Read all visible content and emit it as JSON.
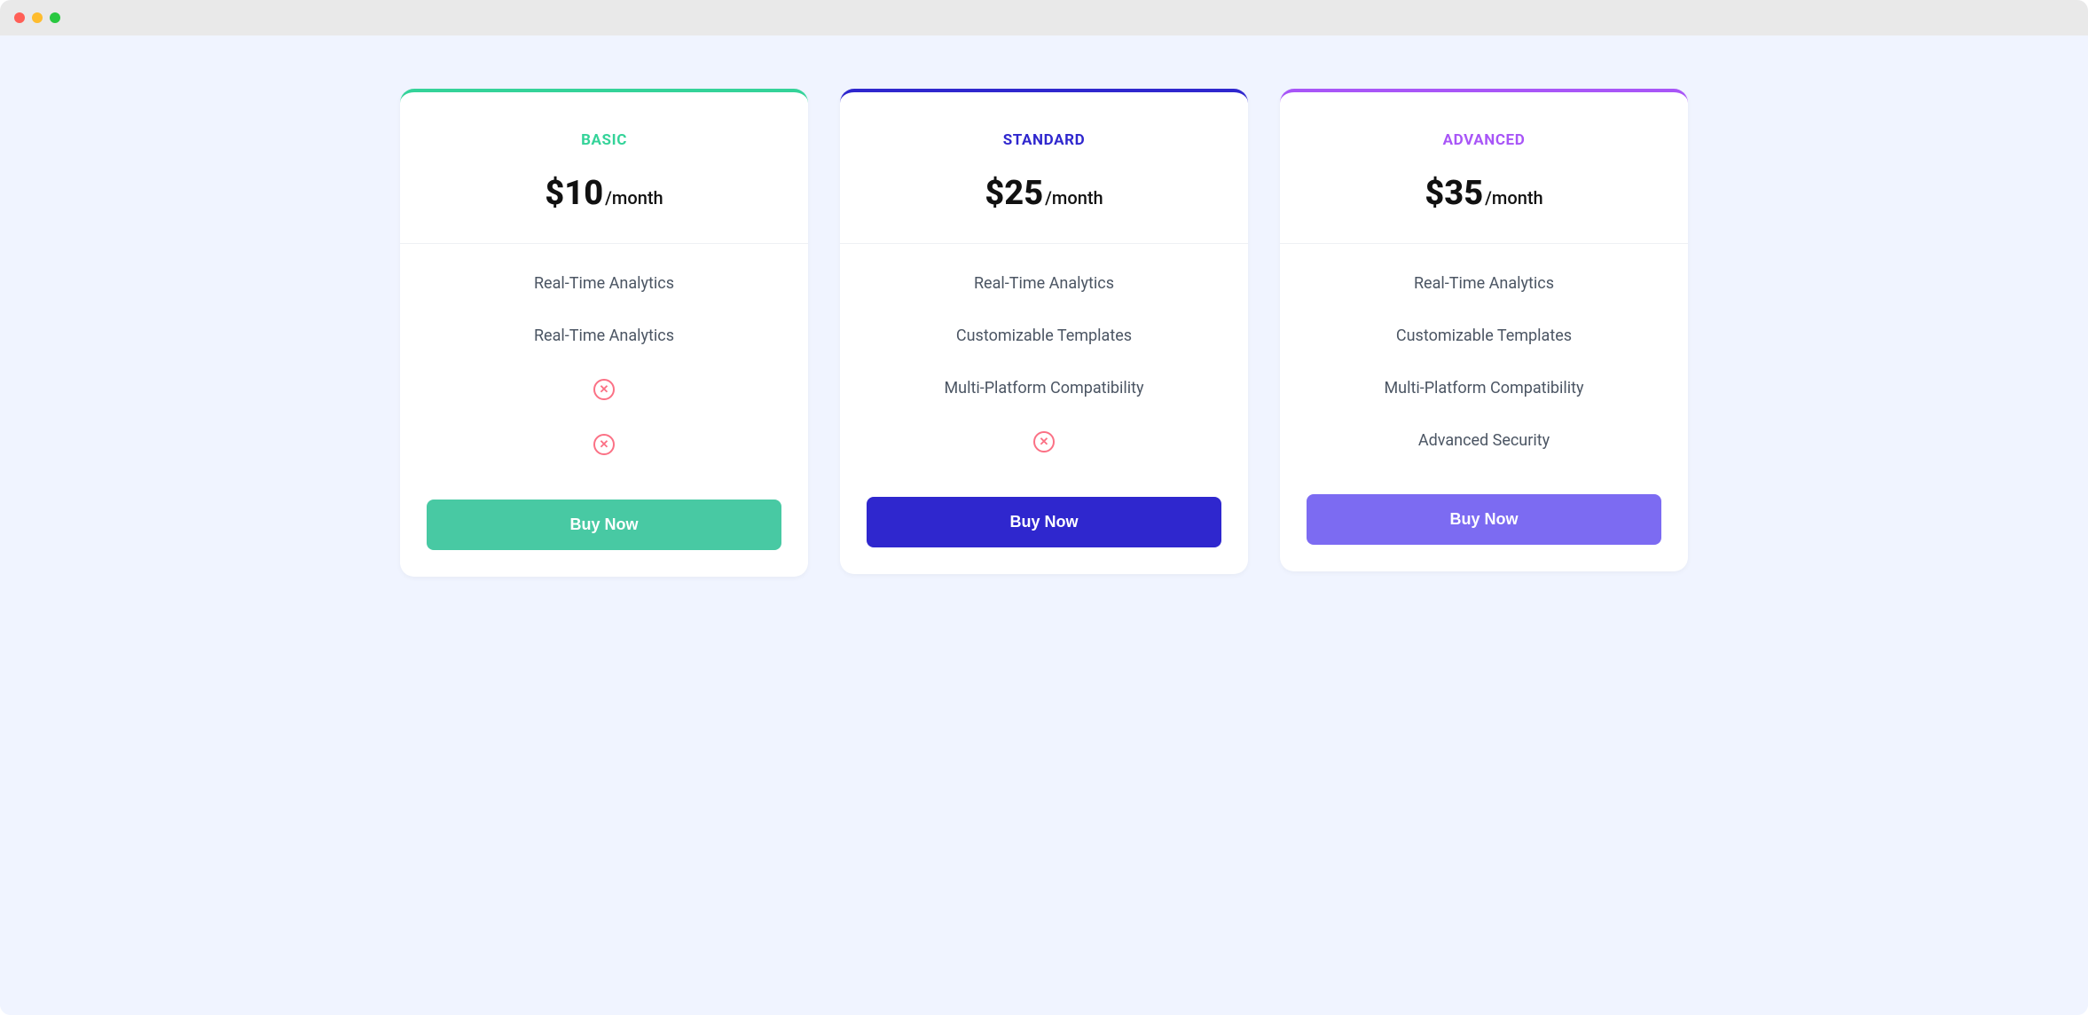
{
  "window": {
    "titlebar": {
      "background": "#e9e9e9",
      "dots": [
        "#ff5f57",
        "#febc2e",
        "#28c840"
      ]
    },
    "content_background": "#f0f4ff"
  },
  "pricing": {
    "period_label": "/month",
    "x_icon_color": "#fb7185",
    "feature_text_color": "#4b5563",
    "plans": [
      {
        "id": "basic",
        "name": "BASIC",
        "accent": "#34d399",
        "name_color": "#34d399",
        "price": "$10",
        "button_label": "Buy Now",
        "button_bg": "#48c9a3",
        "features": [
          {
            "type": "text",
            "label": "Real-Time Analytics"
          },
          {
            "type": "text",
            "label": "Real-Time Analytics"
          },
          {
            "type": "x"
          },
          {
            "type": "x"
          }
        ]
      },
      {
        "id": "standard",
        "name": "STANDARD",
        "accent": "#2f27ce",
        "name_color": "#2f27ce",
        "price": "$25",
        "button_label": "Buy Now",
        "button_bg": "#2f27ce",
        "features": [
          {
            "type": "text",
            "label": "Real-Time Analytics"
          },
          {
            "type": "text",
            "label": "Customizable Templates"
          },
          {
            "type": "text",
            "label": "Multi-Platform Compatibility"
          },
          {
            "type": "x"
          }
        ]
      },
      {
        "id": "advanced",
        "name": "ADVANCED",
        "accent": "#a855f7",
        "name_color": "#a855f7",
        "price": "$35",
        "button_label": "Buy Now",
        "button_bg": "#7c6bf2",
        "features": [
          {
            "type": "text",
            "label": "Real-Time Analytics"
          },
          {
            "type": "text",
            "label": "Customizable Templates"
          },
          {
            "type": "text",
            "label": "Multi-Platform Compatibility"
          },
          {
            "type": "text",
            "label": "Advanced Security"
          }
        ]
      }
    ]
  }
}
